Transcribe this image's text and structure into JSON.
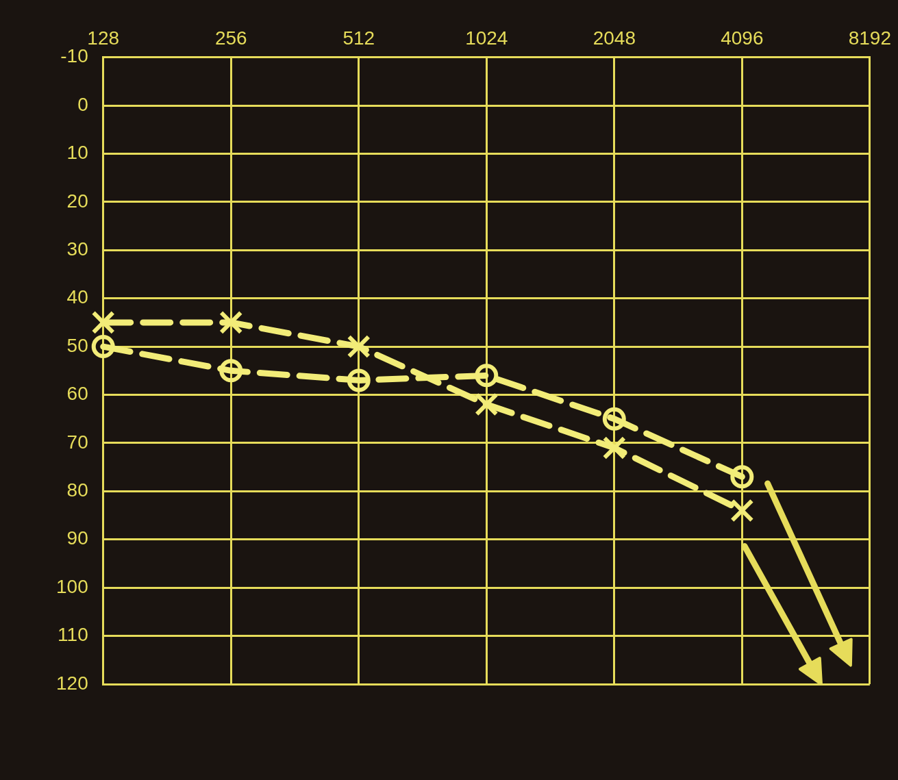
{
  "chart_data": {
    "type": "line",
    "categories": [
      "128",
      "256",
      "512",
      "1024",
      "2048",
      "4096",
      "8192"
    ],
    "series": [
      {
        "color": "#f2ec78",
        "marker": "cross",
        "values": [
          45,
          45,
          50,
          62,
          71,
          84,
          null
        ]
      },
      {
        "color": "#f2ec78",
        "marker": "circle",
        "values": [
          50,
          55,
          57,
          56,
          65,
          77,
          null
        ]
      }
    ],
    "ylim": [
      120,
      -10
    ],
    "yticks": [
      -10,
      0,
      10,
      20,
      30,
      40,
      50,
      60,
      70,
      80,
      90,
      100,
      110,
      120
    ],
    "grid": true,
    "legend": false,
    "line_style": "dashed"
  }
}
